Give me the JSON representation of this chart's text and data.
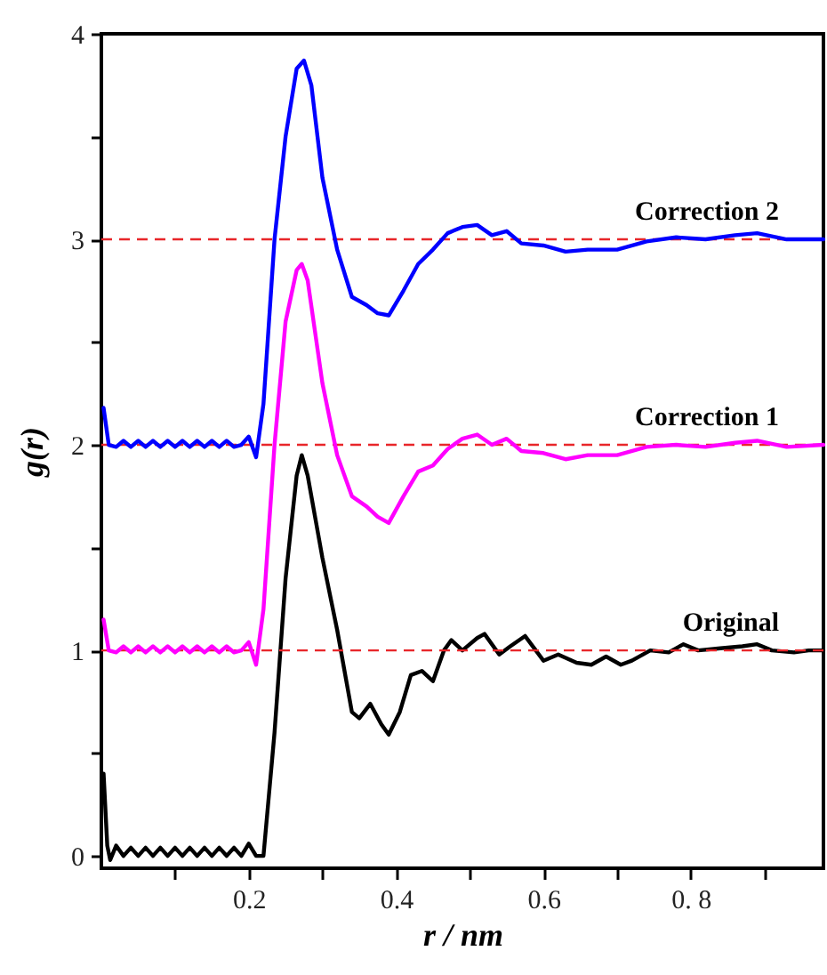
{
  "chart_data": {
    "type": "line",
    "xlabel": "r / nm",
    "ylabel": "g(r)",
    "xlim": [
      0,
      0.98
    ],
    "ylim": [
      -0.06,
      4
    ],
    "xticks": [
      {
        "value": 0.1,
        "label": null
      },
      0.2,
      {
        "value": 0.3,
        "label": null
      },
      0.4,
      {
        "value": 0.5,
        "label": null
      },
      0.6,
      {
        "value": 0.7,
        "label": null
      },
      {
        "value": 0.8,
        "label": "0. 8"
      },
      {
        "value": 0.9,
        "label": null
      }
    ],
    "yticks": [
      0,
      {
        "value": 0.5,
        "label": null
      },
      1,
      {
        "value": 1.5,
        "label": null
      },
      2,
      {
        "value": 2.5,
        "label": null
      },
      3,
      {
        "value": 3.5,
        "label": null
      },
      4
    ],
    "grid": false,
    "legend": false,
    "marker": "none",
    "line_style": "solid",
    "ref_lines": [
      {
        "axis": "y",
        "value": 1,
        "color": "#e8262a",
        "line_style": "dashed"
      },
      {
        "axis": "y",
        "value": 2,
        "color": "#e8262a",
        "line_style": "dashed"
      },
      {
        "axis": "y",
        "value": 3,
        "color": "#e8262a",
        "line_style": "dashed"
      }
    ],
    "series": [
      {
        "name": "Original",
        "color": "#000000",
        "x": [
          0.003,
          0.008,
          0.012,
          0.02,
          0.03,
          0.04,
          0.05,
          0.06,
          0.07,
          0.08,
          0.09,
          0.1,
          0.11,
          0.12,
          0.13,
          0.14,
          0.15,
          0.16,
          0.17,
          0.18,
          0.19,
          0.2,
          0.21,
          0.22,
          0.235,
          0.25,
          0.265,
          0.272,
          0.28,
          0.3,
          0.32,
          0.34,
          0.35,
          0.365,
          0.38,
          0.39,
          0.405,
          0.42,
          0.435,
          0.45,
          0.465,
          0.475,
          0.49,
          0.51,
          0.52,
          0.54,
          0.555,
          0.575,
          0.6,
          0.62,
          0.645,
          0.665,
          0.685,
          0.705,
          0.72,
          0.745,
          0.77,
          0.79,
          0.81,
          0.84,
          0.87,
          0.89,
          0.91,
          0.94,
          0.96,
          0.98
        ],
        "values": [
          0.4,
          0.05,
          -0.02,
          0.05,
          0.0,
          0.04,
          0.0,
          0.04,
          0.0,
          0.04,
          0.0,
          0.04,
          0.0,
          0.04,
          0.0,
          0.04,
          0.0,
          0.04,
          0.0,
          0.04,
          0.0,
          0.06,
          0.0,
          0.0,
          0.6,
          1.35,
          1.85,
          1.95,
          1.85,
          1.45,
          1.1,
          0.7,
          0.67,
          0.74,
          0.64,
          0.59,
          0.7,
          0.88,
          0.9,
          0.85,
          1.0,
          1.05,
          1.0,
          1.06,
          1.08,
          0.98,
          1.02,
          1.07,
          0.95,
          0.98,
          0.94,
          0.93,
          0.97,
          0.93,
          0.95,
          1.0,
          0.99,
          1.03,
          1.0,
          1.01,
          1.02,
          1.03,
          1.0,
          0.99,
          1.0,
          1.0
        ]
      },
      {
        "name": "Correction 1",
        "color": "#ff00ff",
        "x": [
          0.003,
          0.01,
          0.02,
          0.03,
          0.04,
          0.05,
          0.06,
          0.07,
          0.08,
          0.09,
          0.1,
          0.11,
          0.12,
          0.13,
          0.14,
          0.15,
          0.16,
          0.17,
          0.18,
          0.19,
          0.2,
          0.21,
          0.22,
          0.235,
          0.25,
          0.265,
          0.272,
          0.28,
          0.3,
          0.32,
          0.34,
          0.36,
          0.375,
          0.39,
          0.41,
          0.43,
          0.45,
          0.47,
          0.49,
          0.51,
          0.53,
          0.55,
          0.57,
          0.6,
          0.63,
          0.66,
          0.7,
          0.74,
          0.78,
          0.82,
          0.86,
          0.89,
          0.93,
          0.98
        ],
        "values": [
          1.15,
          1.0,
          0.99,
          1.02,
          0.99,
          1.02,
          0.99,
          1.02,
          0.99,
          1.02,
          0.99,
          1.02,
          0.99,
          1.02,
          0.99,
          1.02,
          0.99,
          1.02,
          0.99,
          1.0,
          1.04,
          0.93,
          1.2,
          2.0,
          2.6,
          2.85,
          2.88,
          2.8,
          2.3,
          1.95,
          1.75,
          1.7,
          1.65,
          1.62,
          1.75,
          1.87,
          1.9,
          1.98,
          2.03,
          2.05,
          2.0,
          2.03,
          1.97,
          1.96,
          1.93,
          1.95,
          1.95,
          1.99,
          2.0,
          1.99,
          2.01,
          2.02,
          1.99,
          2.0
        ]
      },
      {
        "name": "Correction 2",
        "color": "#0000ff",
        "x": [
          0.003,
          0.01,
          0.02,
          0.03,
          0.04,
          0.05,
          0.06,
          0.07,
          0.08,
          0.09,
          0.1,
          0.11,
          0.12,
          0.13,
          0.14,
          0.15,
          0.16,
          0.17,
          0.18,
          0.19,
          0.2,
          0.21,
          0.22,
          0.235,
          0.25,
          0.265,
          0.275,
          0.285,
          0.3,
          0.32,
          0.34,
          0.36,
          0.375,
          0.39,
          0.41,
          0.43,
          0.45,
          0.47,
          0.49,
          0.51,
          0.53,
          0.55,
          0.57,
          0.6,
          0.63,
          0.66,
          0.7,
          0.74,
          0.78,
          0.82,
          0.86,
          0.89,
          0.93,
          0.98
        ],
        "values": [
          2.18,
          2.0,
          1.99,
          2.02,
          1.99,
          2.02,
          1.99,
          2.02,
          1.99,
          2.02,
          1.99,
          2.02,
          1.99,
          2.02,
          1.99,
          2.02,
          1.99,
          2.02,
          1.99,
          2.0,
          2.04,
          1.94,
          2.2,
          3.0,
          3.5,
          3.83,
          3.87,
          3.75,
          3.3,
          2.95,
          2.72,
          2.68,
          2.64,
          2.63,
          2.75,
          2.88,
          2.95,
          3.03,
          3.06,
          3.07,
          3.02,
          3.04,
          2.98,
          2.97,
          2.94,
          2.95,
          2.95,
          2.99,
          3.01,
          3.0,
          3.02,
          3.03,
          3.0,
          3.0
        ]
      }
    ]
  }
}
